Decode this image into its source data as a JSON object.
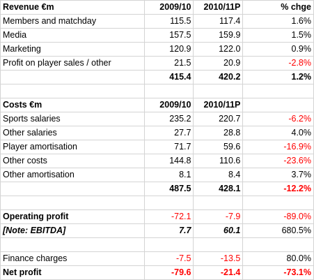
{
  "colors": {
    "negative": "#ff0000",
    "gridline": "#d4d4d4"
  },
  "revenue": {
    "header": [
      "Revenue €m",
      "2009/10",
      "2010/11P",
      "% chge"
    ],
    "rows": [
      [
        "Members and matchday",
        "115.5",
        "117.4",
        "1.6%"
      ],
      [
        "Media",
        "157.5",
        "159.9",
        "1.5%"
      ],
      [
        "Marketing",
        "120.9",
        "122.0",
        "0.9%"
      ],
      [
        "Profit on player sales / other",
        "21.5",
        "20.9",
        "-2.8%"
      ]
    ],
    "total": [
      "",
      "415.4",
      "420.2",
      "1.2%"
    ]
  },
  "costs": {
    "header": [
      "Costs €m",
      "2009/10",
      "2010/11P",
      ""
    ],
    "rows": [
      [
        "Sports salaries",
        "235.2",
        "220.7",
        "-6.2%"
      ],
      [
        "Other salaries",
        "27.7",
        "28.8",
        "4.0%"
      ],
      [
        "Player amortisation",
        "71.7",
        "59.6",
        "-16.9%"
      ],
      [
        "Other costs",
        "144.8",
        "110.6",
        "-23.6%"
      ],
      [
        "Other amortisation",
        "8.1",
        "8.4",
        "3.7%"
      ]
    ],
    "total": [
      "",
      "487.5",
      "428.1",
      "-12.2%"
    ]
  },
  "operating": {
    "profit": [
      "Operating profit",
      "-72.1",
      "-7.9",
      "-89.0%"
    ],
    "ebitda": [
      "[Note: EBITDA]",
      "7.7",
      "60.1",
      "680.5%"
    ]
  },
  "bottom": {
    "finance": [
      "Finance charges",
      "-7.5",
      "-13.5",
      "80.0%"
    ],
    "net": [
      "Net profit",
      "-79.6",
      "-21.4",
      "-73.1%"
    ]
  }
}
